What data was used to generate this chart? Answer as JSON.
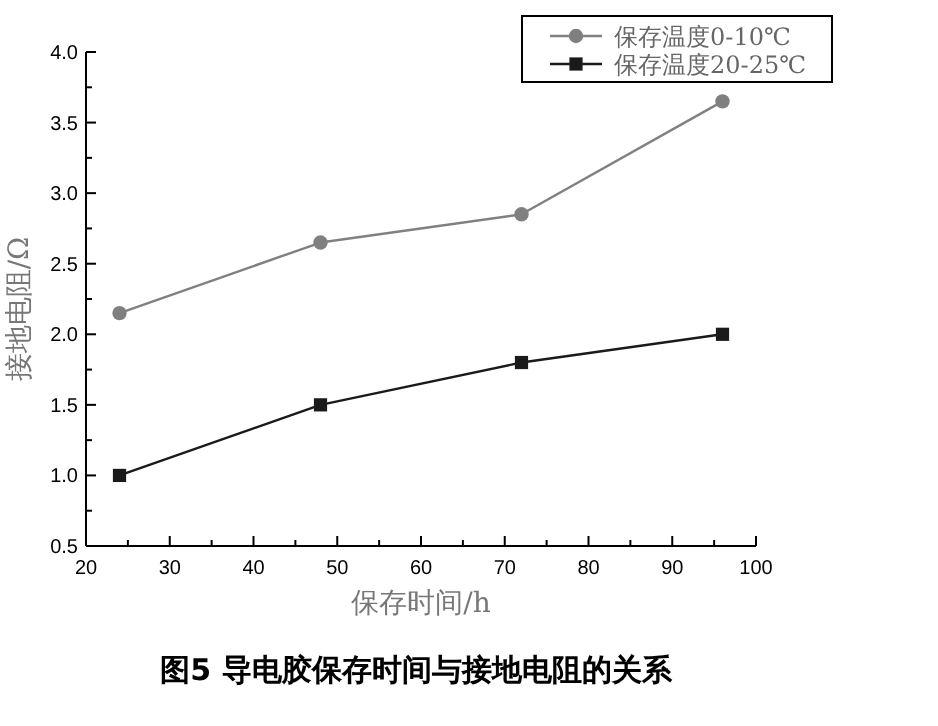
{
  "chart_data": {
    "type": "line",
    "title": "图5  导电胶保存时间与接地电阻的关系",
    "xlabel": "保存时间/h",
    "ylabel": "接地电阻/Ω",
    "x": [
      24,
      48,
      72,
      96
    ],
    "series": [
      {
        "name": "保存温度0-10℃",
        "color": "#808080",
        "marker": "circle",
        "values": [
          2.15,
          2.65,
          2.85,
          3.65
        ]
      },
      {
        "name": "保存温度20-25℃",
        "color": "#1a1a1a",
        "marker": "square",
        "values": [
          1.0,
          1.5,
          1.8,
          2.0
        ]
      }
    ],
    "xlim": [
      20,
      100
    ],
    "xticks": [
      20,
      30,
      40,
      50,
      60,
      70,
      80,
      90,
      100
    ],
    "ylim": [
      0.5,
      4.0
    ],
    "yticks": [
      0.5,
      {
        "value": 1,
        "label": "1.0"
      },
      1.5,
      {
        "value": 2,
        "label": "2.0"
      },
      2.5,
      {
        "value": 3,
        "label": "3.0"
      },
      3.5,
      {
        "value": 4,
        "label": "4.0"
      }
    ],
    "grid": false,
    "legend": "top right",
    "line_style": "solid"
  }
}
